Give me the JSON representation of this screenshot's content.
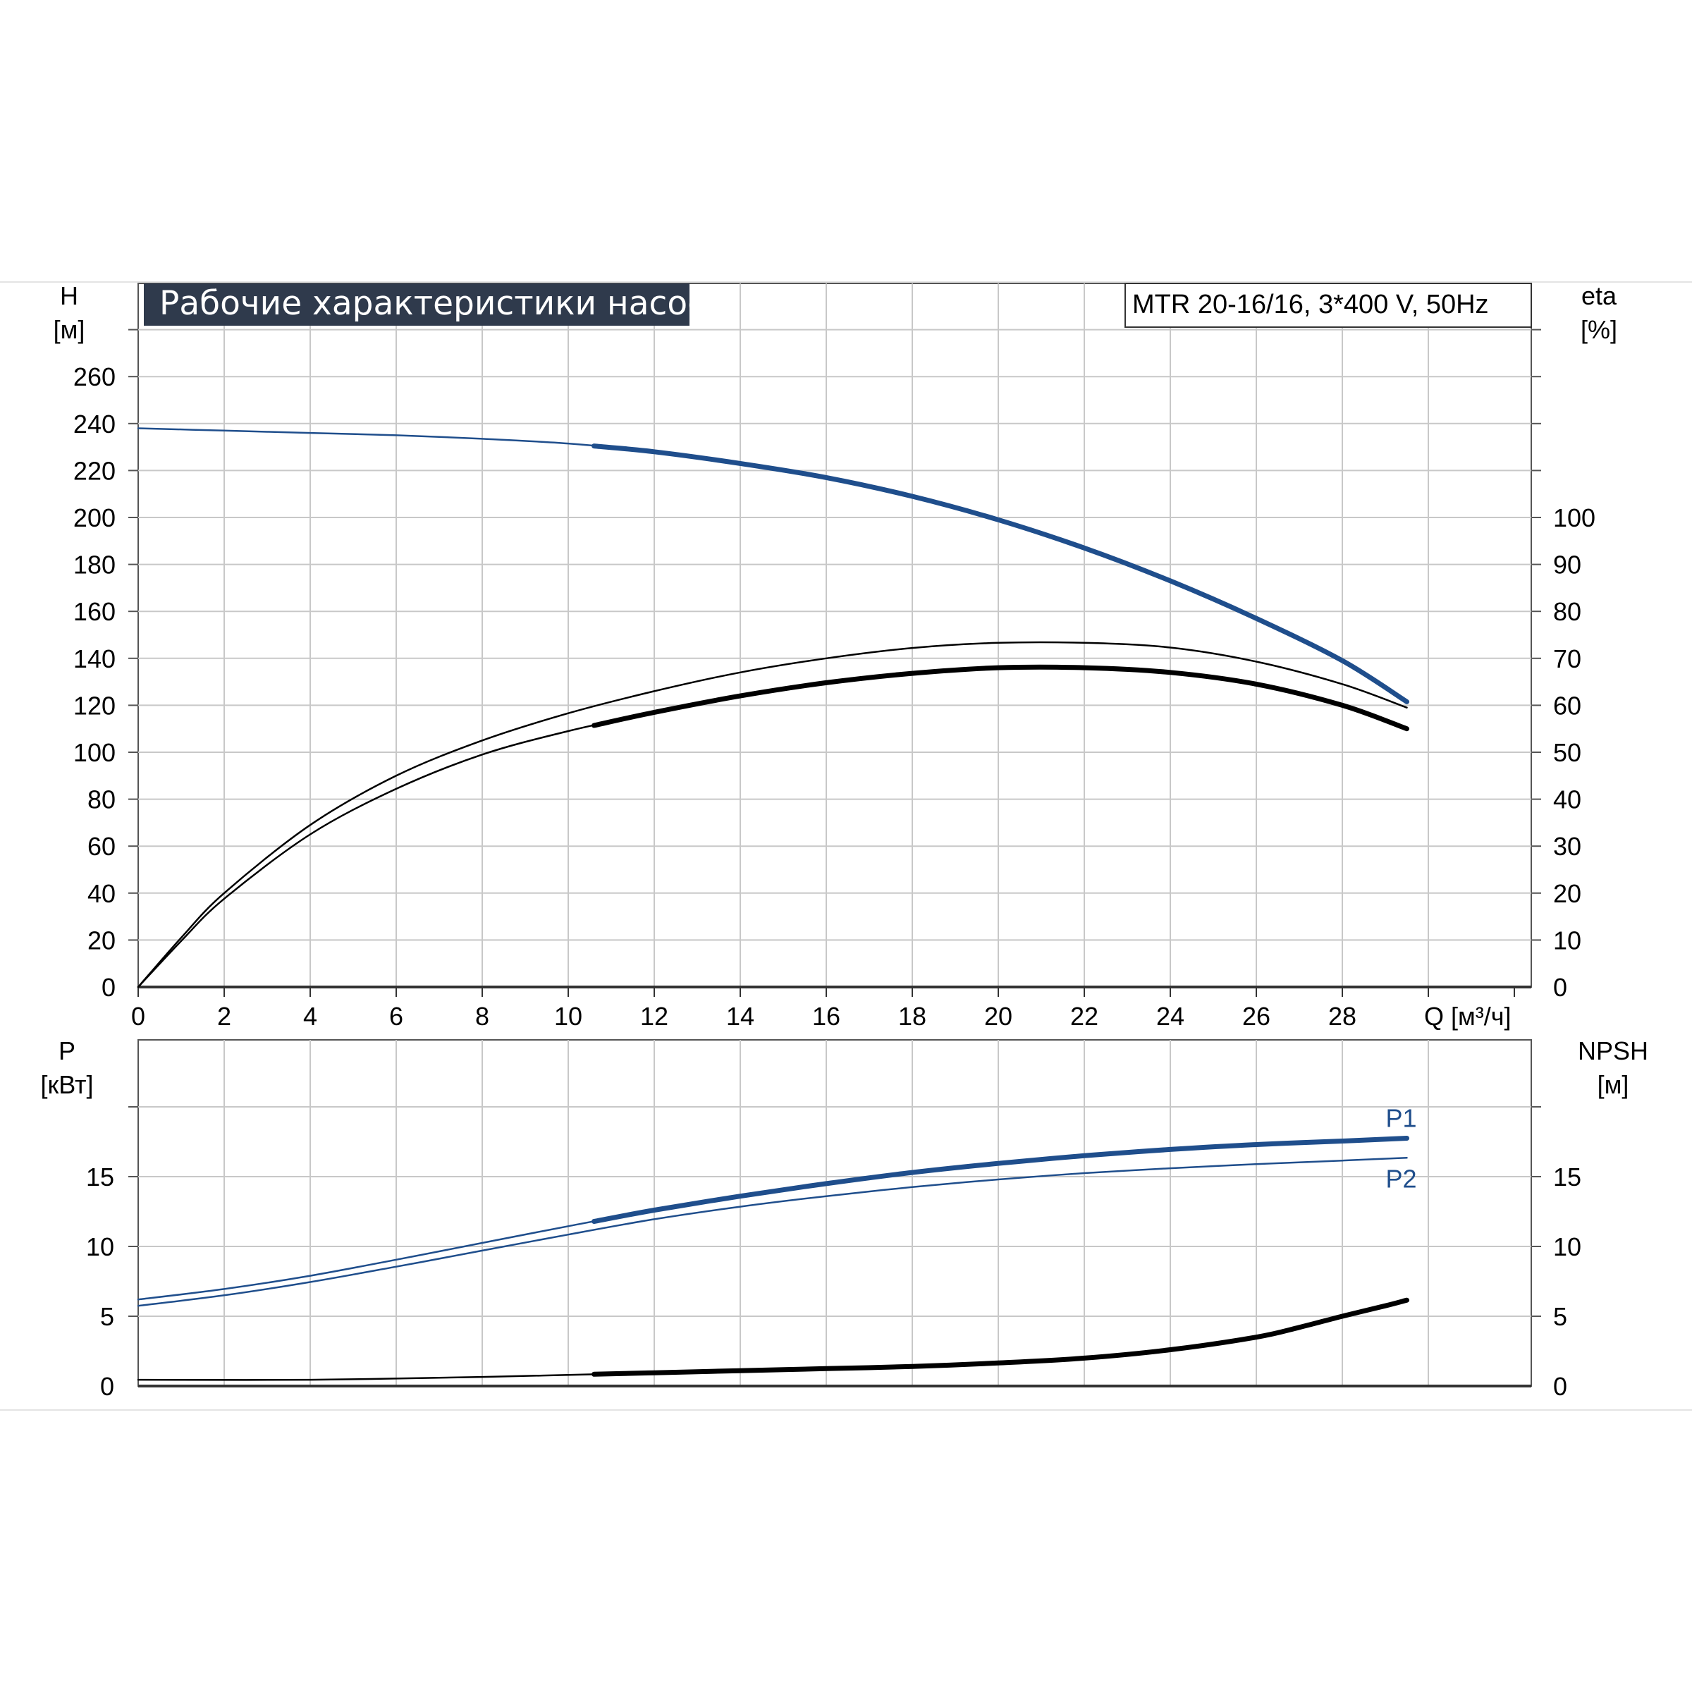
{
  "chart_data": [
    {
      "type": "line",
      "title": "Рабочие характеристики насоса",
      "subtitle": "MTR 20-16/16, 3*400 V, 50Hz",
      "xlabel": "Q [м³/ч]",
      "ylabel_left": [
        "H",
        "[м]"
      ],
      "ylabel_right": [
        "eta",
        "[%]"
      ],
      "xlim": [
        0,
        32.5
      ],
      "x_ticks": [
        "0",
        "2",
        "4",
        "6",
        "8",
        "10",
        "12",
        "14",
        "16",
        "18",
        "20",
        "22",
        "24",
        "26",
        "28"
      ],
      "ylim_left": [
        0,
        280
      ],
      "y_ticks_left": [
        "0",
        "20",
        "40",
        "60",
        "80",
        "100",
        "120",
        "140",
        "160",
        "180",
        "200",
        "220",
        "240",
        "260"
      ],
      "ylim_right": [
        0,
        140
      ],
      "y_ticks_right": [
        "0",
        "10",
        "20",
        "30",
        "40",
        "50",
        "60",
        "70",
        "80",
        "90",
        "100"
      ],
      "grid": true,
      "series": [
        {
          "color": "#1f4e8c",
          "axis": "left",
          "operating_from_x": 10.6,
          "x": [
            0,
            2,
            4,
            6,
            8,
            10,
            12,
            14,
            16,
            18,
            20,
            22,
            24,
            26,
            28,
            29.5
          ],
          "y": [
            238,
            237,
            236,
            235,
            233.5,
            231.5,
            228,
            223,
            217,
            209,
            199,
            187,
            173,
            157,
            139,
            121.5
          ]
        },
        {
          "color": "#000000",
          "axis": "right",
          "operating_from_x": null,
          "x": [
            0,
            1,
            2,
            4,
            6,
            8,
            10,
            12,
            14,
            16,
            18,
            20,
            22,
            24,
            26,
            28,
            29.5
          ],
          "y": [
            0,
            10.5,
            20,
            34.5,
            45,
            52.5,
            58.3,
            63,
            67,
            70,
            72.2,
            73.3,
            73.3,
            72.3,
            69.3,
            64.5,
            59.5
          ]
        },
        {
          "color": "#000000",
          "axis": "right",
          "operating_from_x": 10.6,
          "x": [
            0,
            1,
            2,
            4,
            6,
            8,
            10,
            12,
            14,
            16,
            18,
            20,
            22,
            24,
            26,
            28,
            29.5
          ],
          "y": [
            0,
            9.8,
            18.8,
            32.5,
            42.2,
            49.5,
            54.5,
            58.5,
            62,
            64.8,
            66.8,
            68,
            68,
            67,
            64.5,
            60,
            55
          ]
        }
      ]
    },
    {
      "type": "line",
      "ylabel_left": [
        "P",
        "[кВт]"
      ],
      "ylabel_right": [
        "NPSH",
        "[м]"
      ],
      "xlim": [
        0,
        32.5
      ],
      "ylim_left": [
        0,
        20
      ],
      "y_ticks_left": [
        "0",
        "5",
        "10",
        "15"
      ],
      "ylim_right": [
        0,
        20
      ],
      "y_ticks_right": [
        "0",
        "5",
        "10",
        "15"
      ],
      "grid": true,
      "series": [
        {
          "name": "P1",
          "color": "#1f4e8c",
          "axis": "left",
          "operating_from_x": 10.6,
          "x": [
            0,
            2,
            4,
            6,
            8,
            10,
            12,
            14,
            16,
            18,
            20,
            22,
            24,
            26,
            28,
            29.5
          ],
          "y": [
            6.2,
            6.95,
            7.9,
            9.05,
            10.25,
            11.45,
            12.6,
            13.6,
            14.5,
            15.3,
            15.95,
            16.5,
            16.95,
            17.3,
            17.55,
            17.75
          ]
        },
        {
          "name": "P2",
          "color": "#1f4e8c",
          "axis": "left",
          "operating_from_x": null,
          "x": [
            0,
            2,
            4,
            6,
            8,
            10,
            12,
            14,
            16,
            18,
            20,
            22,
            24,
            26,
            28,
            29.5
          ],
          "y": [
            5.75,
            6.5,
            7.45,
            8.55,
            9.7,
            10.85,
            11.95,
            12.85,
            13.6,
            14.25,
            14.8,
            15.25,
            15.6,
            15.9,
            16.15,
            16.35
          ]
        },
        {
          "color": "#000000",
          "axis": "right",
          "operating_from_x": 10.6,
          "x": [
            0,
            4,
            8,
            10,
            12,
            14,
            16,
            18,
            20,
            22,
            24,
            26,
            27,
            28,
            29,
            29.5
          ],
          "y": [
            0.45,
            0.45,
            0.65,
            0.8,
            0.95,
            1.1,
            1.25,
            1.4,
            1.65,
            2.0,
            2.6,
            3.5,
            4.2,
            5.0,
            5.75,
            6.15
          ]
        }
      ]
    }
  ]
}
